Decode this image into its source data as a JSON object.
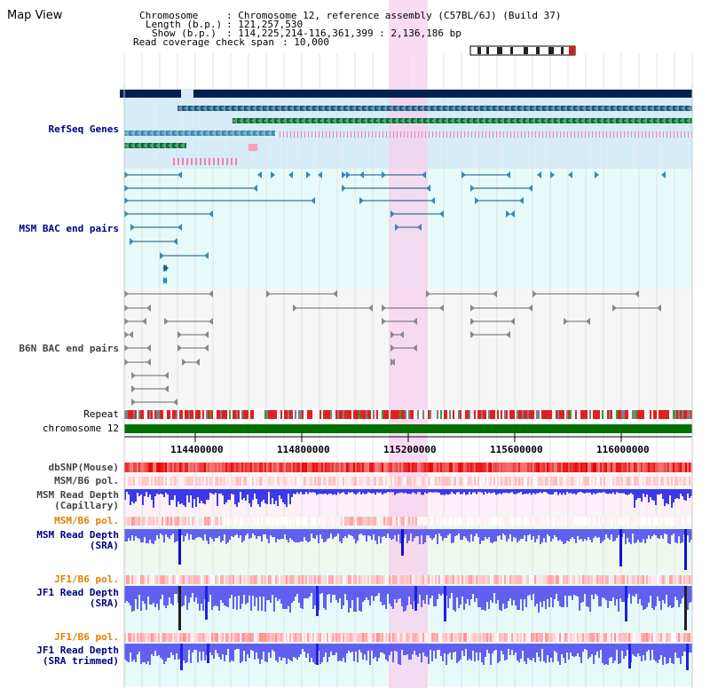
{
  "title": "Map View",
  "header": {
    "chromosome_label": "Chromosome",
    "chromosome_value": ": Chromosome 12, reference assembly (C57BL/6J) (Build 37)",
    "length_label": "Length (b.p.)",
    "length_value": ": 121,257,530",
    "show_label": "Show (b.p.)",
    "show_value": ": 114,225,214-116,361,399 : 2,136,186 bp",
    "coverage_label": "Read coverage check span",
    "coverage_value": ": 10,000"
  },
  "tracks": {
    "refseq": "RefSeq Genes",
    "msm_bac": "MSM BAC end pairs",
    "b6n_bac": "B6N BAC end pairs",
    "repeat": "Repeat",
    "chromosome": "chromosome 12",
    "dbsnp": "dbSNP(Mouse)",
    "msm_b6_pol_1": "MSM/B6 pol.",
    "msm_read_depth_cap_1": "MSM Read Depth",
    "msm_read_depth_cap_2": "(Capillary)",
    "msm_b6_pol_2": "MSM/B6 pol.",
    "msm_read_depth_sra_1": "MSM Read Depth",
    "msm_read_depth_sra_2": "(SRA)",
    "jf1_b6_pol_1": "JF1/B6 pol.",
    "jf1_read_depth_1": "JF1 Read Depth",
    "jf1_read_depth_2": "(SRA)",
    "jf1_b6_pol_2": "JF1/B6 pol.",
    "jf1_trim_1": "JF1 Read Depth",
    "jf1_trim_2": "(SRA trimmed)"
  },
  "axis_ticks": [
    "114400000",
    "114800000",
    "115200000",
    "115600000",
    "116000000"
  ],
  "colors": {
    "refseq_bg": "#d6ecf8",
    "bac_bg": "#e6fafa",
    "highlight": "#f7d0ee",
    "chromosome": "#007000",
    "navy_label": "#000080",
    "orange_label": "#e08000",
    "depth_blue": "#6060f0"
  }
}
